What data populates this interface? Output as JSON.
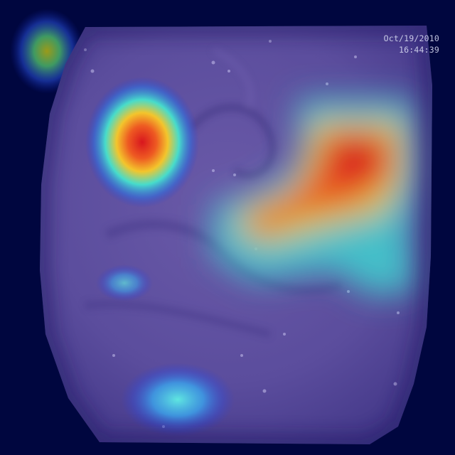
{
  "overlay": {
    "date": "Oct/19/2010",
    "time": "16:44:39"
  },
  "colors": {
    "background": "#00063f",
    "tissue": "#5a4c9c",
    "heat_hot": "#e0262a",
    "heat_warm": "#f2c12a",
    "heat_cool": "#3fd8cf"
  }
}
